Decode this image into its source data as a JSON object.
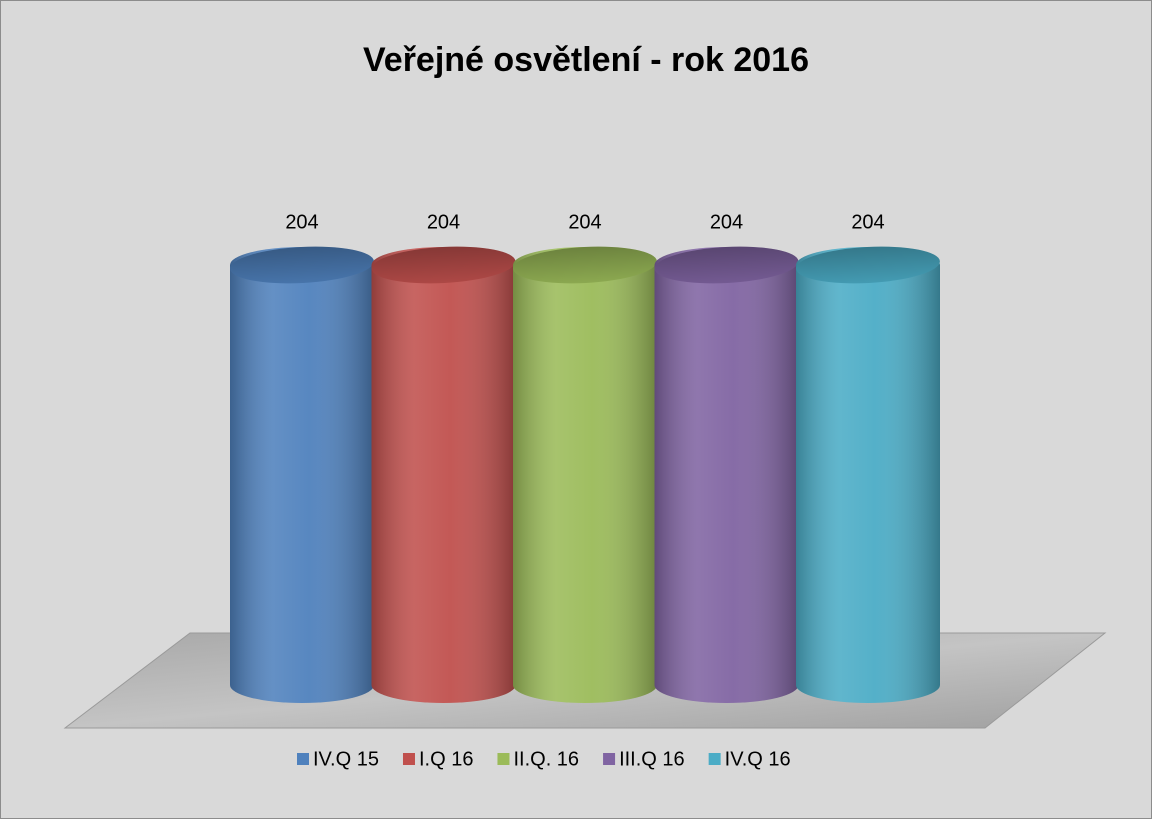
{
  "chart_data": {
    "type": "cylinder",
    "title": "Veřejné osvětlení - rok 2016",
    "series": [
      {
        "name": "IV.Q 15",
        "color": "#4f81bd",
        "values": [
          204
        ]
      },
      {
        "name": "I.Q 16",
        "color": "#c0504d",
        "values": [
          204
        ]
      },
      {
        "name": "II.Q. 16",
        "color": "#9bbb59",
        "values": [
          204
        ]
      },
      {
        "name": "III.Q 16",
        "color": "#8064a2",
        "values": [
          204
        ]
      },
      {
        "name": "IV.Q 16",
        "color": "#4bacc6",
        "values": [
          204
        ]
      }
    ],
    "legend": "bottom"
  }
}
